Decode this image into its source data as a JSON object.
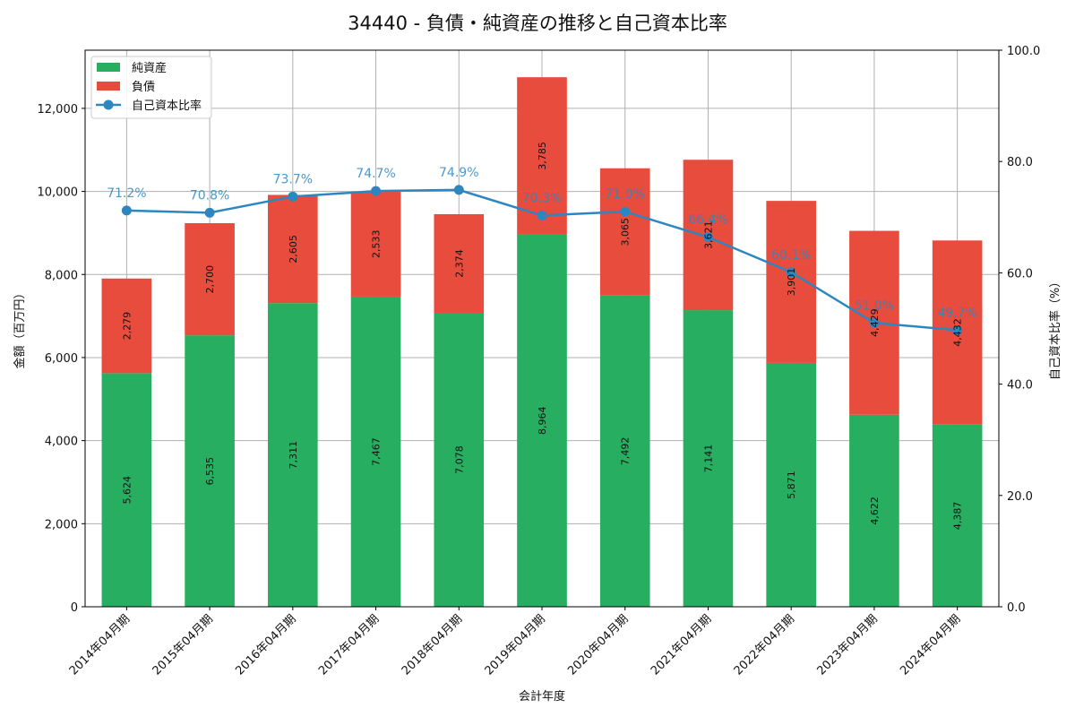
{
  "chart_data": {
    "type": "bar",
    "title": "34440 - 負債・純資産の推移と自己資本比率",
    "xlabel": "会計年度",
    "ylabel": "金額（百万円）",
    "y2label": "自己資本比率（%）",
    "ylim": [
      0,
      13400
    ],
    "y2lim": [
      0,
      100
    ],
    "yticks": [
      0,
      2000,
      4000,
      6000,
      8000,
      10000,
      12000
    ],
    "ytick_labels": [
      "0",
      "2,000",
      "4,000",
      "6,000",
      "8,000",
      "10,000",
      "12,000"
    ],
    "y2ticks": [
      0,
      20,
      40,
      60,
      80,
      100
    ],
    "y2tick_labels": [
      "0.0",
      "20.0",
      "40.0",
      "60.0",
      "80.0",
      "100.0"
    ],
    "grid": true,
    "legend_position": "top-left",
    "categories": [
      "2014年04月期",
      "2015年04月期",
      "2016年04月期",
      "2017年04月期",
      "2018年04月期",
      "2019年04月期",
      "2020年04月期",
      "2021年04月期",
      "2022年04月期",
      "2023年04月期",
      "2024年04月期"
    ],
    "series": [
      {
        "name": "純資産",
        "kind": "stacked-bar",
        "color": "#27ae60",
        "values": [
          5624,
          6535,
          7311,
          7467,
          7078,
          8964,
          7492,
          7141,
          5871,
          4622,
          4387
        ],
        "labels": [
          "5,624",
          "6,535",
          "7,311",
          "7,467",
          "7,078",
          "8,964",
          "7,492",
          "7,141",
          "5,871",
          "4,622",
          "4,387"
        ]
      },
      {
        "name": "負債",
        "kind": "stacked-bar",
        "color": "#e74c3c",
        "values": [
          2279,
          2700,
          2605,
          2533,
          2374,
          3785,
          3065,
          3621,
          3901,
          4429,
          4432
        ],
        "labels": [
          "2,279",
          "2,700",
          "2,605",
          "2,533",
          "2,374",
          "3,785",
          "3,065",
          "3,621",
          "3,901",
          "4,429",
          "4,432"
        ]
      },
      {
        "name": "自己資本比率",
        "kind": "line",
        "axis": "right",
        "color": "#2e86c1",
        "values": [
          71.2,
          70.8,
          73.7,
          74.7,
          74.9,
          70.3,
          71.0,
          66.4,
          60.1,
          51.0,
          49.7
        ],
        "labels": [
          "71.2%",
          "70.8%",
          "73.7%",
          "74.7%",
          "74.9%",
          "70.3%",
          "71.0%",
          "66.4%",
          "60.1%",
          "51.0%",
          "49.7%"
        ]
      }
    ]
  }
}
